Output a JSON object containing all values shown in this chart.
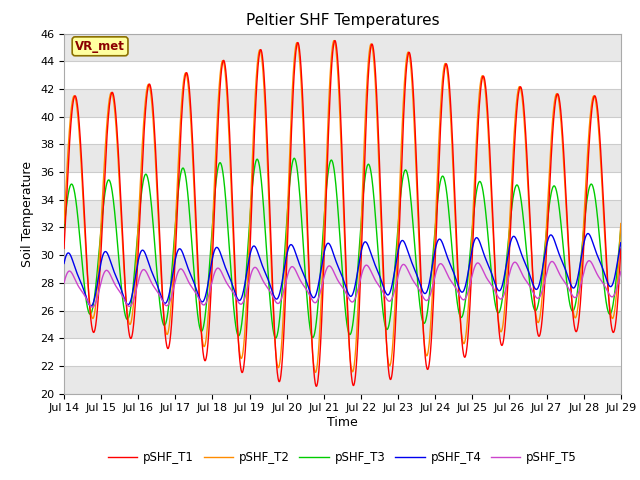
{
  "title": "Peltier SHF Temperatures",
  "xlabel": "Time",
  "ylabel": "Soil Temperature",
  "ylim": [
    20,
    46
  ],
  "yticks": [
    20,
    22,
    24,
    26,
    28,
    30,
    32,
    34,
    36,
    38,
    40,
    42,
    44,
    46
  ],
  "xtick_labels": [
    "Jul 14",
    "Jul 15",
    "Jul 16",
    "Jul 17",
    "Jul 18",
    "Jul 19",
    "Jul 20",
    "Jul 21",
    "Jul 22",
    "Jul 23",
    "Jul 24",
    "Jul 25",
    "Jul 26",
    "Jul 27",
    "Jul 28",
    "Jul 29"
  ],
  "annotation_text": "VR_met",
  "annotation_color": "#8B0000",
  "annotation_bg": "#FFFFA0",
  "annotation_edge": "#8B7000",
  "series_colors": [
    "#FF0000",
    "#FF8C00",
    "#00CC00",
    "#0000EE",
    "#CC44CC"
  ],
  "series_labels": [
    "pSHF_T1",
    "pSHF_T2",
    "pSHF_T3",
    "pSHF_T4",
    "pSHF_T5"
  ],
  "fig_bg": "#FFFFFF",
  "plot_bg": "#FFFFFF",
  "band_color": "#E8E8E8",
  "grid_color": "#CCCCCC",
  "title_fontsize": 11,
  "axis_fontsize": 9,
  "tick_fontsize": 8
}
